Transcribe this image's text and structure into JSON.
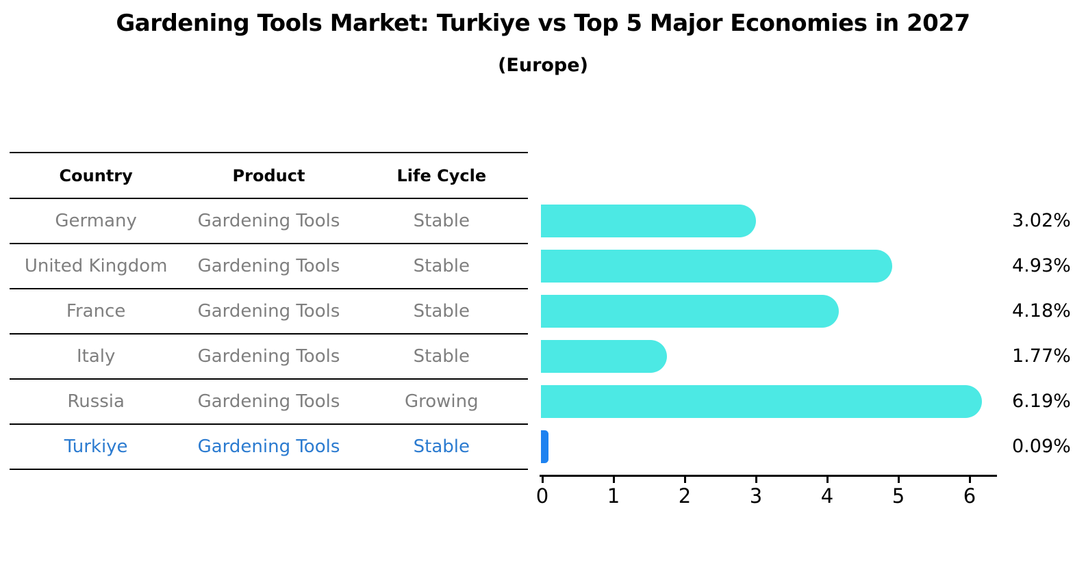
{
  "title": "Gardening Tools Market: Turkiye vs Top 5 Major Economies in 2027",
  "subtitle": "(Europe)",
  "table": {
    "headers": [
      "Country",
      "Product",
      "Life Cycle"
    ],
    "rows": [
      {
        "country": "Germany",
        "product": "Gardening Tools",
        "life_cycle": "Stable",
        "highlight": false
      },
      {
        "country": "United Kingdom",
        "product": "Gardening Tools",
        "life_cycle": "Stable",
        "highlight": false
      },
      {
        "country": "France",
        "product": "Gardening Tools",
        "life_cycle": "Stable",
        "highlight": false
      },
      {
        "country": "Italy",
        "product": "Gardening Tools",
        "life_cycle": "Stable",
        "highlight": false
      },
      {
        "country": "Russia",
        "product": "Gardening Tools",
        "life_cycle": "Growing",
        "highlight": false
      },
      {
        "country": "Turkiye",
        "product": "Gardening Tools",
        "life_cycle": "Stable",
        "highlight": true
      }
    ]
  },
  "chart_data": {
    "type": "bar",
    "orientation": "horizontal",
    "title": "Gardening Tools Market: Turkiye vs Top 5 Major Economies in 2027",
    "subtitle": "(Europe)",
    "categories": [
      "Germany",
      "United Kingdom",
      "France",
      "Italy",
      "Russia",
      "Turkiye"
    ],
    "values": [
      3.02,
      4.93,
      4.18,
      1.77,
      6.19,
      0.09
    ],
    "value_labels": [
      "3.02%",
      "4.93%",
      "4.18%",
      "1.77%",
      "6.19%",
      "0.09%"
    ],
    "x_ticks": [
      0,
      1,
      2,
      3,
      4,
      5,
      6
    ],
    "xlim": [
      0,
      6.4
    ],
    "xlabel": "",
    "ylabel": "",
    "grid": false,
    "legend": null,
    "bar_colors": [
      "#4CE9E4",
      "#4CE9E4",
      "#4CE9E4",
      "#4CE9E4",
      "#4CE9E4",
      "#1E82F0"
    ],
    "highlight_index": 5,
    "highlight_color": "#1E82F0",
    "base_bar_color": "#4CE9E4"
  },
  "colors": {
    "background": "#ffffff",
    "table_line": "#000000",
    "header_text": "#000000",
    "row_text": "#7f7f7f",
    "highlight_text": "#2b7bd0",
    "axis": "#000000"
  }
}
